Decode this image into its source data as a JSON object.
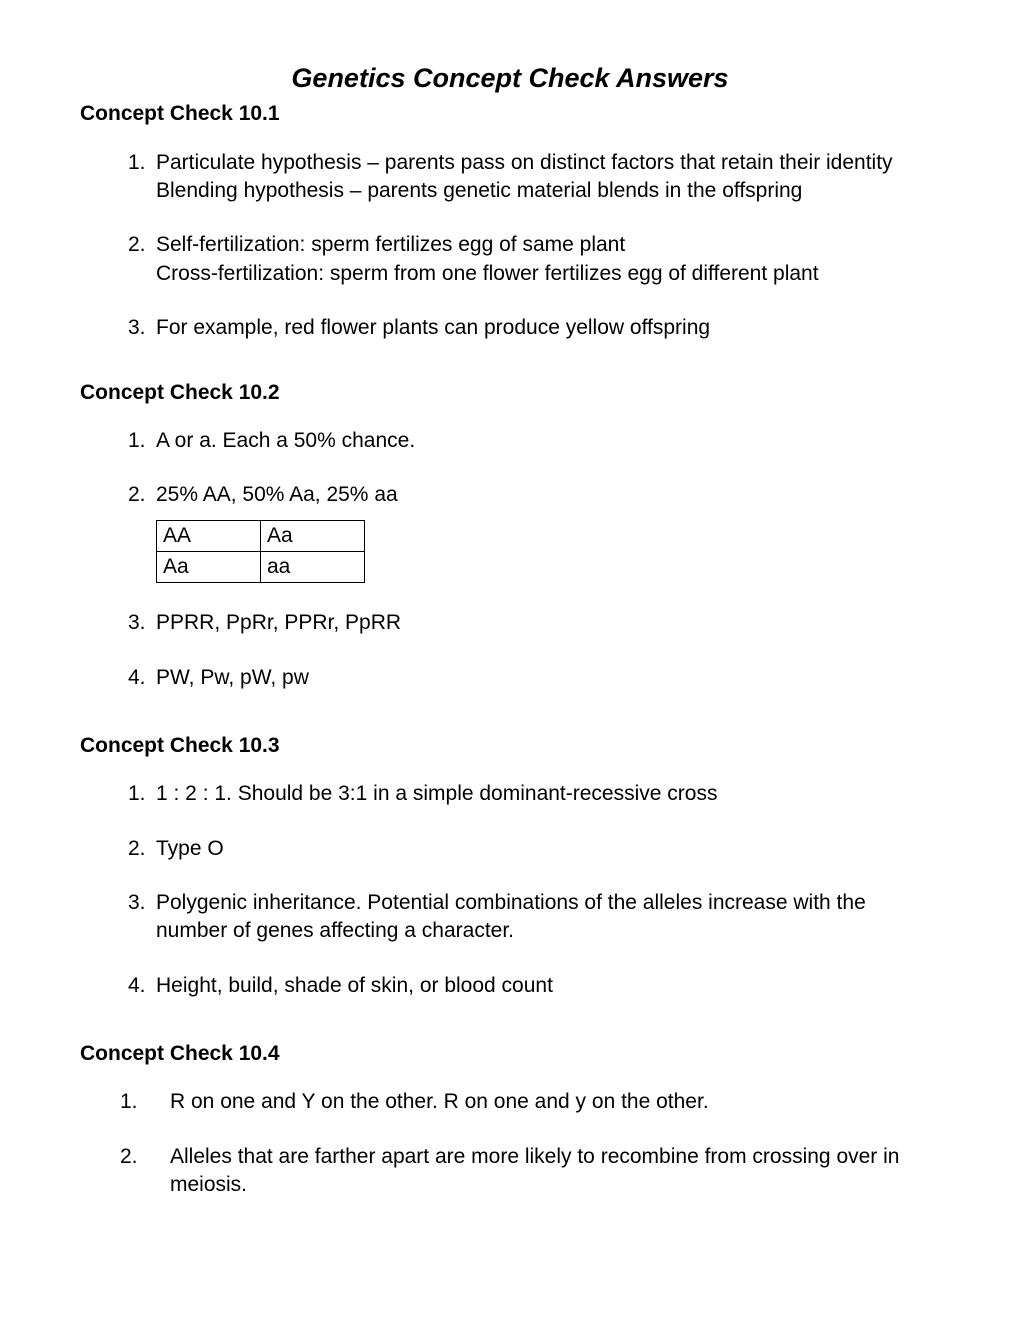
{
  "title": "Genetics Concept Check Answers",
  "sections": [
    {
      "heading": "Concept Check 10.1",
      "items": [
        {
          "num": "1.",
          "lines": [
            "Particulate hypothesis – parents pass on distinct factors that retain their identity",
            "Blending hypothesis – parents genetic material blends in the offspring"
          ]
        },
        {
          "num": "2.",
          "lines": [
            "Self-fertilization: sperm fertilizes egg of same plant",
            "Cross-fertilization: sperm from one flower fertilizes egg of different plant"
          ]
        },
        {
          "num": "3.",
          "lines": [
            "For example, red flower plants can produce yellow offspring"
          ]
        }
      ]
    },
    {
      "heading": "Concept Check 10.2",
      "items": [
        {
          "num": "1.",
          "lines": [
            "A or a. Each a 50% chance."
          ]
        },
        {
          "num": "2.",
          "lines": [
            "25% AA, 50% Aa, 25% aa"
          ],
          "table": {
            "rows": [
              [
                "AA",
                "Aa"
              ],
              [
                "Aa",
                "aa"
              ]
            ]
          }
        },
        {
          "num": "3.",
          "lines": [
            "PPRR, PpRr, PPRr, PpRR"
          ]
        },
        {
          "num": "4.",
          "lines": [
            "PW, Pw, pW, pw"
          ]
        }
      ]
    },
    {
      "heading": "Concept Check 10.3",
      "items": [
        {
          "num": "1.",
          "lines": [
            "1 : 2 : 1.   Should be 3:1 in a simple dominant-recessive cross"
          ]
        },
        {
          "num": "2.",
          "lines": [
            "Type O"
          ]
        },
        {
          "num": "3.",
          "lines": [
            "Polygenic inheritance. Potential combinations of the alleles increase with the number of genes affecting a character."
          ]
        },
        {
          "num": "4.",
          "lines": [
            "Height, build, shade of skin, or blood count"
          ]
        }
      ]
    },
    {
      "heading": "Concept Check 10.4",
      "wide": true,
      "items": [
        {
          "num": "1.",
          "lines": [
            "R on one and Y on the other.   R on one and y on the other."
          ]
        },
        {
          "num": "2.",
          "lines": [
            "Alleles that are farther apart are more likely to recombine from crossing over in meiosis."
          ]
        }
      ]
    }
  ]
}
